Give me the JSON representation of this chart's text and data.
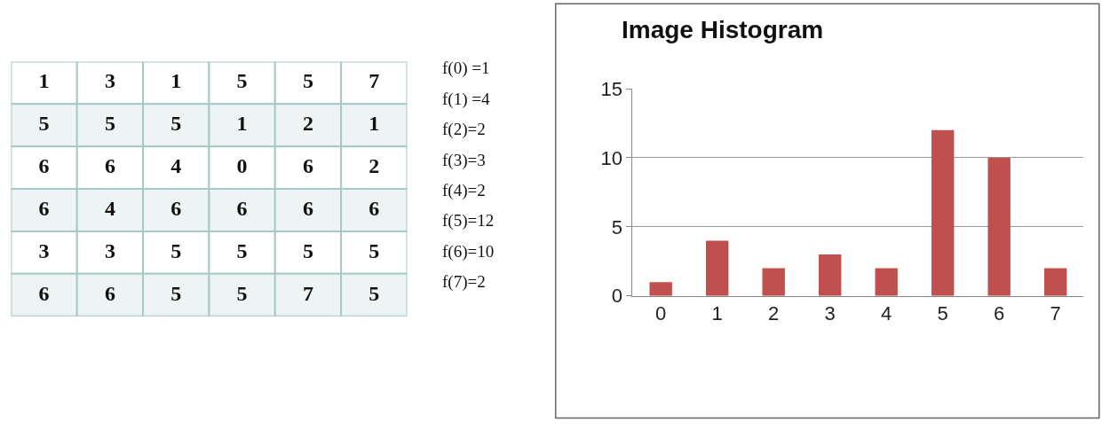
{
  "chart_data": [
    {
      "type": "heatmap",
      "categories": [
        null,
        null,
        null,
        null,
        null,
        null
      ],
      "y_categories": [
        null,
        null,
        null,
        null,
        null,
        null
      ],
      "data_labels": true,
      "cells": [
        [
          1,
          3,
          1,
          5,
          5,
          7
        ],
        [
          5,
          5,
          5,
          1,
          2,
          1
        ],
        [
          6,
          6,
          4,
          0,
          6,
          2
        ],
        [
          6,
          4,
          6,
          6,
          6,
          6
        ],
        [
          3,
          3,
          5,
          5,
          5,
          5
        ],
        [
          6,
          6,
          5,
          5,
          7,
          5
        ]
      ]
    },
    {
      "type": "other",
      "annotations": [
        "f(0) =1",
        "f(1) =4",
        "f(2)=2",
        "f(3)=3",
        "f(4)=2",
        "f(5)=12",
        "f(6)=10",
        "f(7)=2"
      ]
    },
    {
      "type": "bar",
      "title": "Image Histogram",
      "categories": [
        "0",
        "1",
        "2",
        "3",
        "4",
        "5",
        "6",
        "7"
      ],
      "values": [
        1,
        4,
        2,
        3,
        2,
        12,
        10,
        2
      ],
      "color": "#c0504d",
      "ylim": [
        0,
        15
      ],
      "yticks": [
        0,
        5,
        10,
        15
      ],
      "grid": "y"
    }
  ]
}
